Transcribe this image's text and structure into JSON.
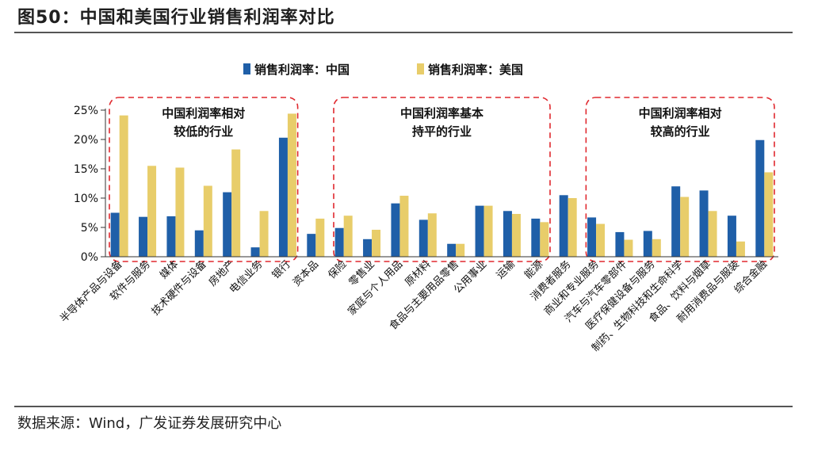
{
  "figure": {
    "title": "图50：中国和美国行业销售利润率对比",
    "source": "数据来源：Wind，广发证券发展研究中心"
  },
  "chart_data": {
    "type": "bar",
    "title": "",
    "xlabel": "",
    "ylabel": "",
    "ylim": [
      0,
      25
    ],
    "yticks": [
      "0%",
      "5%",
      "10%",
      "15%",
      "20%",
      "25%"
    ],
    "legend_position": "top-center",
    "categories": [
      "半导体产品与设备",
      "软件与服务",
      "媒体",
      "技术硬件与设备",
      "房地产",
      "电信业务",
      "银行",
      "资本品",
      "保险",
      "零售业",
      "家庭与个人用品",
      "原材料",
      "食品与主要用品零售",
      "公用事业",
      "运输",
      "能源",
      "消费者服务",
      "商业和专业服务",
      "汽车与汽车零部件",
      "医疗保健设备与服务",
      "制药、生物科技和生命科学",
      "食品、饮料与烟草",
      "耐用消费品与服装",
      "综合金融"
    ],
    "series": [
      {
        "name": "销售利润率：中国",
        "color": "#1f5fa8",
        "values": [
          7.5,
          6.8,
          6.9,
          4.5,
          11.0,
          1.6,
          20.3,
          3.9,
          4.9,
          3.0,
          9.1,
          6.3,
          2.2,
          8.7,
          7.8,
          6.5,
          10.5,
          6.7,
          4.2,
          4.4,
          12.0,
          11.3,
          7.0,
          19.9
        ]
      },
      {
        "name": "销售利润率：美国",
        "color": "#e8cd6a",
        "values": [
          24.1,
          15.5,
          15.2,
          12.1,
          18.3,
          7.8,
          24.4,
          6.5,
          7.0,
          4.6,
          10.4,
          7.4,
          2.2,
          8.7,
          7.3,
          5.9,
          10.0,
          5.6,
          2.9,
          3.0,
          10.2,
          7.8,
          2.6,
          14.4
        ]
      }
    ],
    "annotations": [
      {
        "lines": [
          "中国利润率相对",
          "较低的行业"
        ],
        "range": [
          0,
          6
        ]
      },
      {
        "lines": [
          "中国利润率基本",
          "持平的行业"
        ],
        "range": [
          8,
          15
        ]
      },
      {
        "lines": [
          "中国利润率相对",
          "较高的行业"
        ],
        "range": [
          17,
          23
        ]
      }
    ]
  }
}
